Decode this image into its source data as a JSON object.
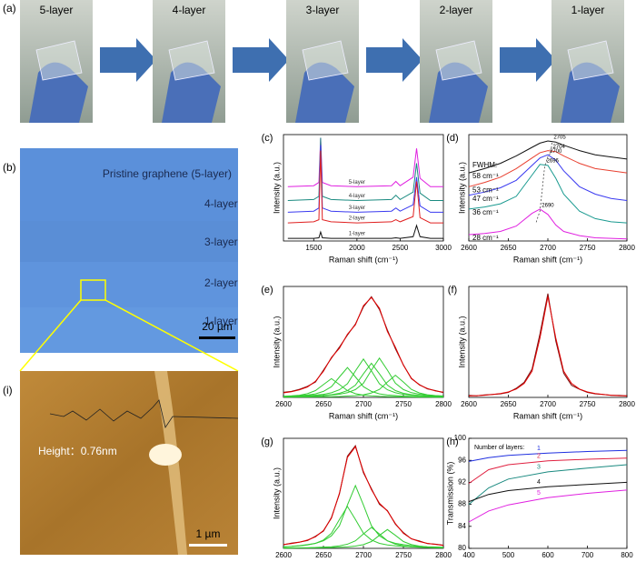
{
  "panel_a": {
    "label": "(a)",
    "photos": [
      "5-layer",
      "4-layer",
      "3-layer",
      "2-layer",
      "1-layer"
    ]
  },
  "panel_b": {
    "label": "(b)",
    "title": "Pristine graphene (5-layer)",
    "layers": [
      "4-layer",
      "3-layer",
      "2-layer",
      "1-layer"
    ],
    "scale_bar": "20 µm"
  },
  "panel_i": {
    "label": "(i)",
    "height": "Height：0.76nm",
    "scale_bar": "1 µm"
  },
  "chart_data": [
    {
      "type": "line",
      "label": "(c)",
      "xlabel": "Raman shift (cm⁻¹)",
      "ylabel": "Intensity (a.u.)",
      "xlim": [
        1150,
        3000
      ],
      "ylim": [
        0,
        10
      ],
      "xticks": [
        1500,
        2000,
        2500,
        3000
      ],
      "x": [
        1200,
        1500,
        1560,
        1580,
        1600,
        1700,
        2000,
        2400,
        2450,
        2500,
        2650,
        2690,
        2730,
        2850,
        3000
      ],
      "series": [
        {
          "name": "5-layer",
          "color": "#e020e0",
          "values": [
            5.1,
            5.2,
            5.5,
            9.7,
            5.5,
            5.2,
            5.1,
            5.2,
            5.6,
            5.2,
            6.0,
            8.7,
            5.9,
            5.1,
            5.1
          ]
        },
        {
          "name": "4-layer",
          "color": "#1a8a80",
          "values": [
            3.8,
            3.9,
            4.2,
            9.7,
            4.2,
            3.9,
            3.8,
            3.9,
            4.3,
            3.9,
            4.6,
            7.3,
            4.5,
            3.8,
            3.8
          ]
        },
        {
          "name": "3-layer",
          "color": "#3a3af0",
          "values": [
            2.7,
            2.8,
            3.1,
            9.0,
            3.1,
            2.8,
            2.7,
            2.8,
            3.1,
            2.8,
            3.4,
            6.0,
            3.3,
            2.7,
            2.7
          ]
        },
        {
          "name": "2-layer",
          "color": "#e02020",
          "values": [
            1.7,
            1.8,
            2.0,
            8.5,
            2.0,
            1.8,
            1.7,
            1.8,
            2.0,
            1.8,
            2.3,
            5.6,
            2.2,
            1.7,
            1.7
          ]
        },
        {
          "name": "1-layer",
          "color": "#111111",
          "values": [
            0.25,
            0.25,
            0.3,
            0.85,
            0.3,
            0.25,
            0.25,
            0.25,
            0.3,
            0.25,
            0.4,
            1.45,
            0.4,
            0.25,
            0.25
          ]
        }
      ]
    },
    {
      "type": "line",
      "label": "(d)",
      "xlabel": "Raman shift (cm⁻¹)",
      "ylabel": "Intensity (a.u.)",
      "annotation": "FWHM:",
      "xlim": [
        2600,
        2800
      ],
      "ylim": [
        0,
        10
      ],
      "xticks": [
        2600,
        2650,
        2700,
        2750,
        2800
      ],
      "x": [
        2600,
        2620,
        2640,
        2660,
        2680,
        2690,
        2700,
        2710,
        2720,
        2740,
        2760,
        2780,
        2800
      ],
      "series": [
        {
          "color": "#111111",
          "fwhm_label": "58 cm⁻¹",
          "peak": 2705,
          "values": [
            6.4,
            6.8,
            7.3,
            8.0,
            8.8,
            9.2,
            9.4,
            9.3,
            9.0,
            8.5,
            8.1,
            7.9,
            7.7
          ]
        },
        {
          "color": "#e84030",
          "fwhm_label": "53 cm⁻¹",
          "peak": 2704,
          "values": [
            5.1,
            5.5,
            6.0,
            6.8,
            7.8,
            8.3,
            8.5,
            8.4,
            8.0,
            7.3,
            6.8,
            6.6,
            6.4
          ]
        },
        {
          "color": "#3a3af0",
          "fwhm_label": "47 cm⁻¹",
          "peak": 2700,
          "values": [
            4.3,
            4.6,
            5.0,
            5.7,
            7.1,
            7.8,
            8.1,
            7.6,
            6.6,
            5.1,
            4.4,
            4.0,
            3.8
          ]
        },
        {
          "color": "#1a9a90",
          "fwhm_label": "36 cm⁻¹",
          "peak": 2696,
          "values": [
            3.0,
            3.2,
            3.5,
            4.2,
            6.2,
            7.2,
            7.1,
            5.9,
            4.4,
            2.8,
            2.1,
            1.8,
            1.7
          ]
        },
        {
          "color": "#e020e0",
          "fwhm_label": "28 cm⁻¹",
          "peak": 2690,
          "values": [
            0.6,
            0.7,
            0.9,
            1.4,
            2.6,
            3.0,
            2.5,
            1.5,
            0.9,
            0.5,
            0.3,
            0.25,
            0.2
          ]
        }
      ]
    },
    {
      "type": "line",
      "label": "(e)",
      "xlabel": "Raman shift (cm⁻¹)",
      "ylabel": "Intensity (a.u.)",
      "xlim": [
        2600,
        2800
      ],
      "ylim": [
        0,
        13
      ],
      "xticks": [
        2600,
        2650,
        2700,
        2750,
        2800
      ],
      "x": [
        2600,
        2610,
        2620,
        2630,
        2640,
        2650,
        2660,
        2670,
        2680,
        2690,
        2700,
        2710,
        2720,
        2730,
        2740,
        2750,
        2760,
        2770,
        2780,
        2790,
        2800
      ],
      "series": [
        {
          "color": "#33cc33",
          "values": [
            0.13,
            0.18,
            0.26,
            0.44,
            0.8,
            1.5,
            2.2,
            1.5,
            0.8,
            0.44,
            0.26,
            0.18,
            0.13,
            0.1,
            0.07,
            0.06,
            0.05,
            0.04,
            0.04,
            0.03,
            0.03
          ]
        },
        {
          "color": "#33cc33",
          "values": [
            0.12,
            0.15,
            0.21,
            0.28,
            0.42,
            0.7,
            1.26,
            2.4,
            3.5,
            2.4,
            1.26,
            0.7,
            0.42,
            0.28,
            0.21,
            0.15,
            0.12,
            0.09,
            0.08,
            0.06,
            0.05
          ]
        },
        {
          "color": "#33cc33",
          "values": [
            0.1,
            0.12,
            0.15,
            0.2,
            0.27,
            0.36,
            0.54,
            0.9,
            1.6,
            3.1,
            4.5,
            3.1,
            1.6,
            0.9,
            0.54,
            0.36,
            0.27,
            0.2,
            0.15,
            0.12,
            0.1
          ]
        },
        {
          "color": "#33cc33",
          "values": [
            0.07,
            0.09,
            0.11,
            0.14,
            0.18,
            0.24,
            0.32,
            0.48,
            0.8,
            1.44,
            2.76,
            4,
            2.76,
            1.44,
            0.8,
            0.48,
            0.32,
            0.24,
            0.18,
            0.14,
            0.11
          ]
        },
        {
          "color": "#33cc33",
          "values": [
            0.07,
            0.08,
            0.1,
            0.12,
            0.16,
            0.2,
            0.28,
            0.37,
            0.55,
            0.92,
            1.66,
            3.2,
            4.6,
            3.2,
            1.66,
            0.92,
            0.55,
            0.37,
            0.28,
            0.2,
            0.16
          ]
        },
        {
          "color": "#33cc33",
          "values": [
            0.04,
            0.04,
            0.05,
            0.05,
            0.06,
            0.07,
            0.09,
            0.11,
            0.16,
            0.21,
            0.31,
            0.52,
            0.94,
            1.8,
            2.6,
            1.8,
            0.94,
            0.52,
            0.31,
            0.21,
            0.16
          ]
        },
        {
          "color": "#7a1010",
          "values": [
            0.6,
            0.7,
            0.95,
            1.3,
            1.8,
            3.2,
            4.6,
            5.9,
            7.3,
            8.6,
            10.6,
            11.8,
            10.3,
            7.9,
            5.7,
            3.8,
            2.2,
            1.5,
            1.0,
            0.8,
            0.55
          ]
        },
        {
          "color": "#e00000",
          "values": [
            0.53,
            0.66,
            0.88,
            1.23,
            1.89,
            3.07,
            4.69,
            5.76,
            7.41,
            8.51,
            10.75,
            11.7,
            10.45,
            7.72,
            5.88,
            3.77,
            2.25,
            1.46,
            1.04,
            0.76,
            0.61
          ]
        }
      ]
    },
    {
      "type": "line",
      "label": "(f)",
      "xlabel": "Raman shift (cm⁻¹)",
      "ylabel": "Intensity (a.u.)",
      "xlim": [
        2600,
        2800
      ],
      "ylim": [
        0,
        11
      ],
      "xticks": [
        2600,
        2650,
        2700,
        2750,
        2800
      ],
      "x": [
        2600,
        2610,
        2620,
        2630,
        2640,
        2650,
        2660,
        2670,
        2680,
        2690,
        2700,
        2710,
        2720,
        2730,
        2740,
        2750,
        2760,
        2770,
        2780,
        2790,
        2800
      ],
      "series": [
        {
          "color": "#7a1010",
          "values": [
            0.2,
            0.15,
            0.25,
            0.3,
            0.35,
            0.5,
            0.9,
            1.5,
            2.8,
            6.3,
            10.3,
            5.6,
            2.4,
            1.2,
            0.8,
            0.5,
            0.35,
            0.3,
            0.2,
            0.2,
            0.15
          ]
        },
        {
          "color": "#e00000",
          "values": [
            0.14,
            0.17,
            0.22,
            0.29,
            0.38,
            0.54,
            0.83,
            1.38,
            2.6,
            5.9,
            10,
            5.9,
            2.6,
            1.38,
            0.83,
            0.54,
            0.38,
            0.29,
            0.22,
            0.17,
            0.14
          ]
        }
      ]
    },
    {
      "type": "line",
      "label": "(g)",
      "xlabel": "Raman shift (cm⁻¹)",
      "ylabel": "Intensity (a.u.)",
      "xlim": [
        2600,
        2800
      ],
      "ylim": [
        0,
        10.5
      ],
      "xticks": [
        2600,
        2650,
        2700,
        2750,
        2800
      ],
      "x": [
        2600,
        2610,
        2620,
        2630,
        2640,
        2650,
        2660,
        2670,
        2680,
        2690,
        2700,
        2710,
        2720,
        2730,
        2740,
        2750,
        2760,
        2770,
        2780,
        2790,
        2800
      ],
      "series": [
        {
          "color": "#33cc33",
          "values": [
            0.14,
            0.18,
            0.24,
            0.32,
            0.48,
            0.8,
            1.44,
            2.76,
            4,
            2.76,
            1.44,
            0.8,
            0.48,
            0.32,
            0.24,
            0.18,
            0.14,
            0.11,
            0.09,
            0.07,
            0.06
          ]
        },
        {
          "color": "#33cc33",
          "values": [
            0.16,
            0.2,
            0.26,
            0.36,
            0.48,
            0.72,
            1.2,
            2.16,
            4.14,
            6,
            4.14,
            2.16,
            1.2,
            0.72,
            0.48,
            0.36,
            0.26,
            0.2,
            0.16,
            0.13,
            0.1
          ]
        },
        {
          "color": "#33cc33",
          "values": [
            0.04,
            0.04,
            0.05,
            0.07,
            0.09,
            0.12,
            0.16,
            0.24,
            0.4,
            0.72,
            1.38,
            2,
            1.38,
            0.72,
            0.4,
            0.24,
            0.16,
            0.12,
            0.09,
            0.07,
            0.05
          ]
        },
        {
          "color": "#33cc33",
          "values": [
            0.03,
            0.03,
            0.04,
            0.04,
            0.05,
            0.06,
            0.08,
            0.11,
            0.14,
            0.22,
            0.36,
            0.65,
            1.24,
            1.8,
            1.24,
            0.65,
            0.36,
            0.22,
            0.14,
            0.11,
            0.08
          ]
        },
        {
          "color": "#7a1010",
          "values": [
            0.35,
            0.5,
            0.6,
            0.75,
            1.15,
            1.65,
            2.95,
            5.2,
            8.8,
            9.8,
            7.2,
            5.7,
            4.2,
            3.6,
            2.3,
            1.5,
            0.9,
            0.7,
            0.45,
            0.4,
            0.3
          ]
        },
        {
          "color": "#e00000",
          "values": [
            0.37,
            0.45,
            0.59,
            0.79,
            1.1,
            1.7,
            2.88,
            5.27,
            8.68,
            9.7,
            7.32,
            5.61,
            4.3,
            3.56,
            2.36,
            1.43,
            0.92,
            0.65,
            0.48,
            0.38,
            0.29
          ]
        }
      ]
    },
    {
      "type": "line",
      "label": "(h)",
      "xlabel": "Wavelength (nm)",
      "ylabel": "Transmission (%)",
      "legend_title": "Number of layers:",
      "xlim": [
        400,
        800
      ],
      "ylim": [
        80,
        100
      ],
      "xticks": [
        400,
        500,
        600,
        700,
        800
      ],
      "yticks": [
        80,
        84,
        88,
        92,
        96,
        100
      ],
      "x": [
        400,
        450,
        500,
        600,
        700,
        800
      ],
      "series": [
        {
          "name": "1",
          "color": "#2030e0",
          "values": [
            95.8,
            96.5,
            96.9,
            97.3,
            97.6,
            97.8
          ]
        },
        {
          "name": "2",
          "color": "#e02040",
          "values": [
            91.8,
            94.3,
            95.2,
            95.9,
            96.2,
            96.4
          ]
        },
        {
          "name": "3",
          "color": "#1a8a80",
          "values": [
            88,
            91,
            92.6,
            93.9,
            94.6,
            95.2
          ]
        },
        {
          "name": "4",
          "color": "#111111",
          "values": [
            88.5,
            89.8,
            90.5,
            91.2,
            91.6,
            92.0
          ]
        },
        {
          "name": "5",
          "color": "#e020e0",
          "values": [
            84.8,
            86.8,
            87.9,
            89.2,
            90.0,
            90.6
          ]
        }
      ]
    }
  ]
}
